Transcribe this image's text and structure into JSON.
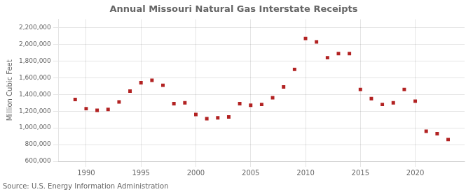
{
  "chart_data": {
    "type": "scatter",
    "title": "Annual Missouri Natural Gas Interstate Receipts",
    "ylabel": "Million Cubic Feet",
    "annotations": [
      "Source: U.S. Energy Information Administration"
    ],
    "color": "#b22222",
    "marker": "square",
    "grid": true,
    "xlim": [
      1987.5,
      2024.5
    ],
    "ylim": [
      600000,
      2300000
    ],
    "xticks": [
      1990,
      1995,
      2000,
      2005,
      2010,
      2015,
      2020
    ],
    "yticks": [
      {
        "value": 600000,
        "label": "600,000"
      },
      {
        "value": 800000,
        "label": "800,000"
      },
      {
        "value": 1000000,
        "label": "1,000,000"
      },
      {
        "value": 1200000,
        "label": "1,200,000"
      },
      {
        "value": 1400000,
        "label": "1,400,000"
      },
      {
        "value": 1600000,
        "label": "1,600,000"
      },
      {
        "value": 1800000,
        "label": "1,800,000"
      },
      {
        "value": 2000000,
        "label": "2,000,000"
      },
      {
        "value": 2200000,
        "label": "2,200,000"
      }
    ],
    "x": [
      1989,
      1990,
      1991,
      1992,
      1993,
      1994,
      1995,
      1996,
      1997,
      1998,
      1999,
      2000,
      2001,
      2002,
      2003,
      2004,
      2005,
      2006,
      2007,
      2008,
      2009,
      2010,
      2011,
      2012,
      2013,
      2014,
      2015,
      2016,
      2017,
      2018,
      2019,
      2020,
      2021,
      2022,
      2023
    ],
    "values": [
      1340000,
      1230000,
      1210000,
      1220000,
      1310000,
      1440000,
      1540000,
      1570000,
      1510000,
      1290000,
      1300000,
      1160000,
      1110000,
      1120000,
      1130000,
      1290000,
      1270000,
      1280000,
      1360000,
      1490000,
      1700000,
      2070000,
      2030000,
      1840000,
      1890000,
      1890000,
      1460000,
      1350000,
      1280000,
      1300000,
      1460000,
      1320000,
      960000,
      930000,
      860000
    ]
  }
}
